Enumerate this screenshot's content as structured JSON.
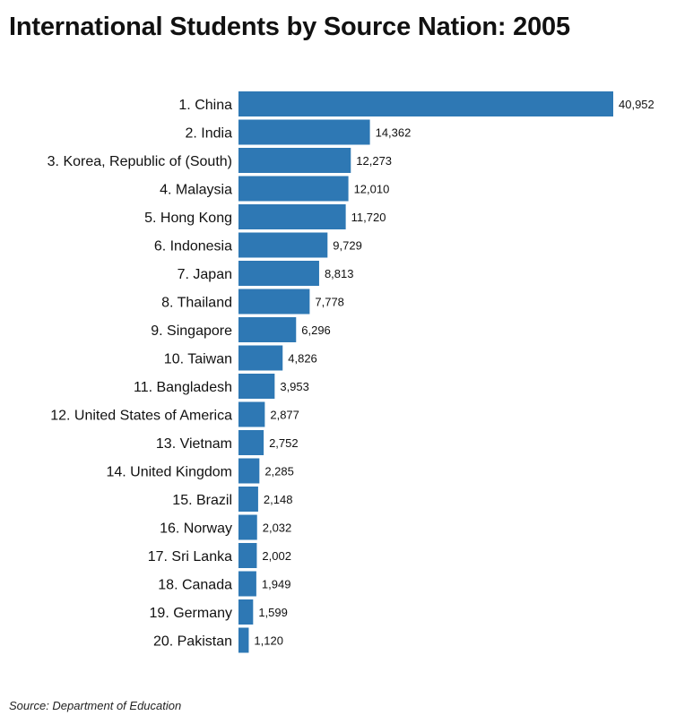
{
  "title": "International Students by Source Nation: 2005",
  "source": "Source: Department of Education",
  "chart_data": {
    "type": "bar",
    "orientation": "horizontal",
    "title": "International Students by Source Nation: 2005",
    "categories": [
      "1. China",
      "2. India",
      "3. Korea, Republic of (South)",
      "4. Malaysia",
      "5. Hong Kong",
      "6. Indonesia",
      "7. Japan",
      "8. Thailand",
      "9. Singapore",
      "10. Taiwan",
      "11. Bangladesh",
      "12. United States of America",
      "13. Vietnam",
      "14. United Kingdom",
      "15. Brazil",
      "16. Norway",
      "17. Sri Lanka",
      "18. Canada",
      "19. Germany",
      "20. Pakistan"
    ],
    "values": [
      40952,
      14362,
      12273,
      12010,
      11720,
      9729,
      8813,
      7778,
      6296,
      4826,
      3953,
      2877,
      2752,
      2285,
      2148,
      2032,
      2002,
      1949,
      1599,
      1120
    ],
    "value_labels": [
      "40,952",
      "14,362",
      "12,273",
      "12,010",
      "11,720",
      "9,729",
      "8,813",
      "7,778",
      "6,296",
      "4,826",
      "3,953",
      "2,877",
      "2,752",
      "2,285",
      "2,148",
      "2,032",
      "2,002",
      "1,949",
      "1,599",
      "1,120"
    ],
    "bar_color": "#2e78b4",
    "xlim": [
      0,
      40952
    ],
    "grid": false,
    "legend": "none"
  }
}
